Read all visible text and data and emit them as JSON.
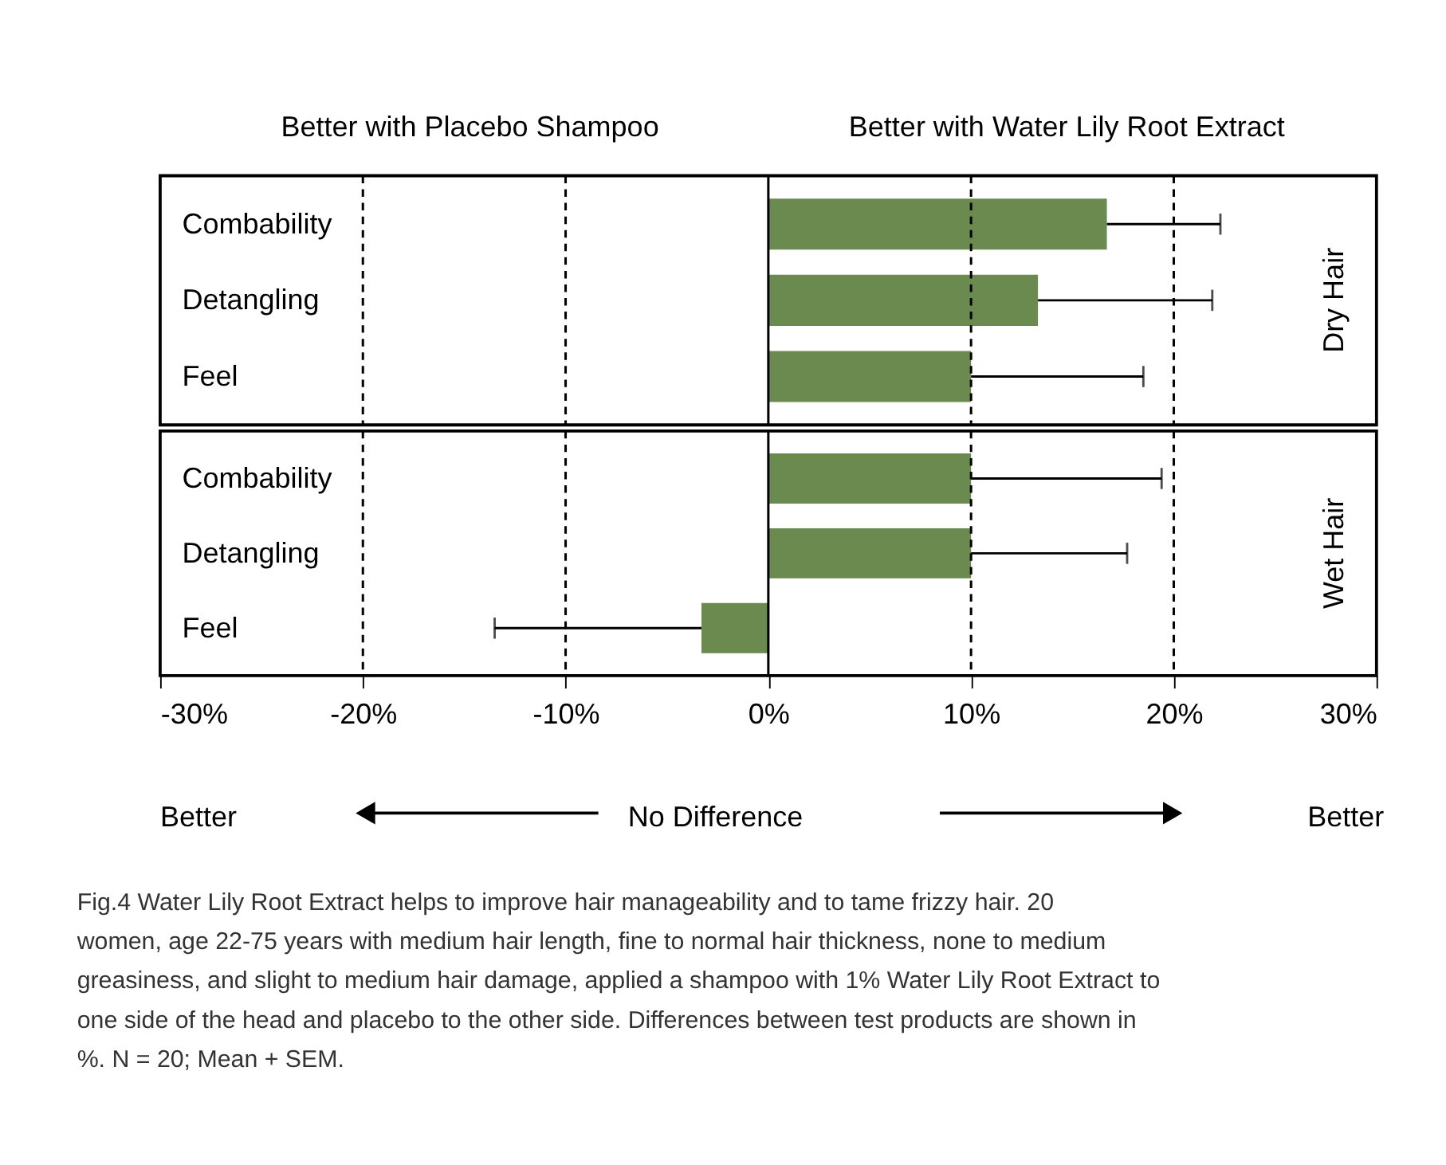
{
  "chart_data": [
    {
      "type": "bar",
      "orientation": "horizontal",
      "ylabel": "Dry Hair",
      "categories": [
        "Combability",
        "Detangling",
        "Feel"
      ],
      "series": [
        {
          "color": "#6a8a4f",
          "values": [
            16.7,
            13.3,
            10.0
          ],
          "errors": [
            [
              16.7,
              22.3
            ],
            [
              13.3,
              21.9
            ],
            [
              10.0,
              18.5
            ]
          ]
        }
      ],
      "xlim": [
        -30,
        30
      ],
      "tick_labels": "y",
      "grid": false,
      "ref_lines": [
        {
          "axis": "x",
          "value": -20,
          "line_style": "dashed",
          "color": "#000000"
        },
        {
          "axis": "x",
          "value": -10,
          "line_style": "dashed",
          "color": "#000000"
        },
        {
          "axis": "x",
          "value": 0,
          "line_style": "solid",
          "color": "#000000"
        },
        {
          "axis": "x",
          "value": 10,
          "line_style": "dashed",
          "color": "#000000"
        },
        {
          "axis": "x",
          "value": 20,
          "line_style": "dashed",
          "color": "#000000"
        }
      ],
      "annotations": [
        "Better with Placebo Shampoo",
        "Better with Water Lily Root Extract"
      ]
    },
    {
      "type": "bar",
      "orientation": "horizontal",
      "ylabel": "Wet Hair",
      "categories": [
        "Combability",
        "Detangling",
        "Feel"
      ],
      "series": [
        {
          "color": "#6a8a4f",
          "values": [
            10.0,
            10.0,
            -3.3
          ],
          "errors": [
            [
              10.0,
              19.4
            ],
            [
              10.0,
              17.7
            ],
            [
              -13.5,
              -3.3
            ]
          ]
        }
      ],
      "xlim": [
        -30,
        30
      ],
      "xticks": [
        {
          "value": -30,
          "label": "-30%"
        },
        {
          "value": -20,
          "label": "-20%"
        },
        {
          "value": -10,
          "label": "-10%"
        },
        {
          "value": 0,
          "label": "0%"
        },
        {
          "value": 10,
          "label": "10%"
        },
        {
          "value": 20,
          "label": "20%"
        },
        {
          "value": 30,
          "label": "30%"
        }
      ],
      "grid": false,
      "ref_lines": [
        {
          "axis": "x",
          "value": -20,
          "line_style": "dashed",
          "color": "#000000"
        },
        {
          "axis": "x",
          "value": -10,
          "line_style": "dashed",
          "color": "#000000"
        },
        {
          "axis": "x",
          "value": 0,
          "line_style": "solid",
          "color": "#000000"
        },
        {
          "axis": "x",
          "value": 10,
          "line_style": "dashed",
          "color": "#000000"
        },
        {
          "axis": "x",
          "value": 20,
          "line_style": "dashed",
          "color": "#000000"
        }
      ],
      "annotations": [
        "Better",
        "No Difference",
        "Better",
        "Fig.4  Water Lily Root Extract helps to improve hair manageability and to tame frizzy hair. 20 women, age 22-75 years with medium hair length, fine to normal hair thickness, none to medium greasiness, and slight to medium hair damage, applied a shampoo with 1% Water Lily Root Extract to one side of the head and placebo to the other side. Differences between test products are shown in %. N = 20; Mean + SEM."
      ]
    }
  ]
}
